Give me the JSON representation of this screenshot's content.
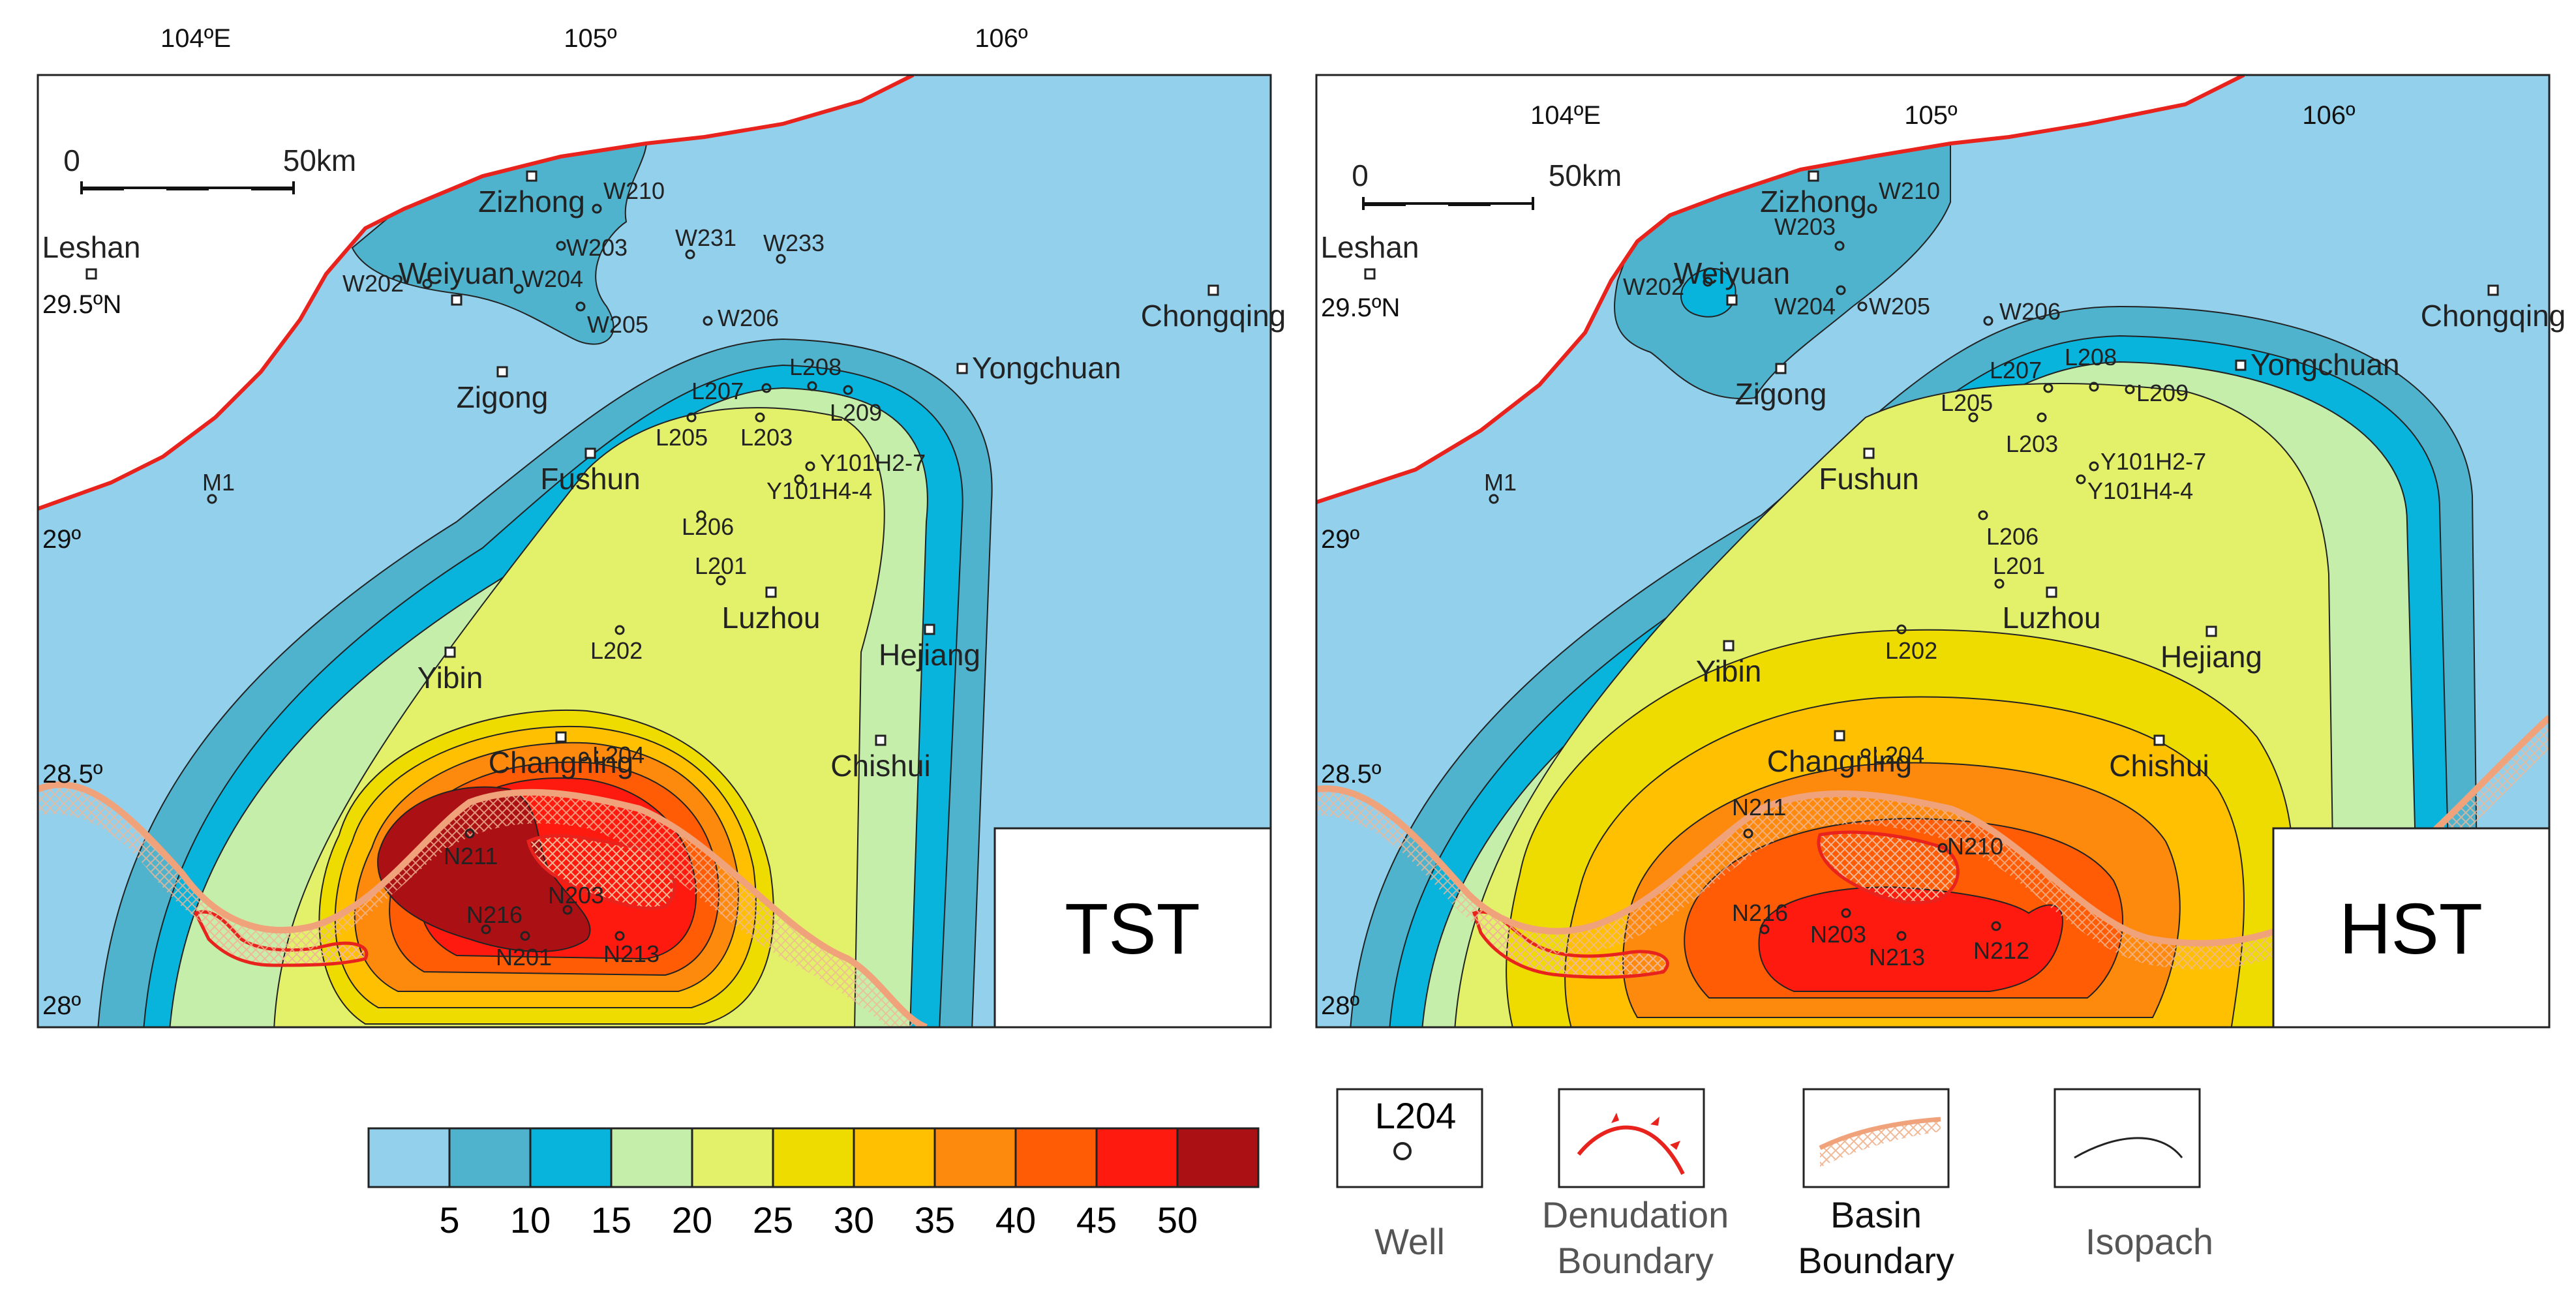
{
  "maps": [
    {
      "title": "TST",
      "lon_labels": [
        "104ºE",
        "105º",
        "106º"
      ],
      "lat_labels": [
        "29.5ºN",
        "29º",
        "28.5º",
        "28º"
      ],
      "scale": {
        "zero": "0",
        "end": "50km"
      },
      "cities": [
        "Zizhong",
        "Leshan",
        "Weiyuan",
        "Zigong",
        "Fushun",
        "Yibin",
        "Changning",
        "Luzhou",
        "Hejiang",
        "Chishui",
        "Yongchuan",
        "Chongqing"
      ],
      "wells": [
        "W210",
        "W203",
        "W231",
        "W233",
        "W202",
        "W204",
        "W205",
        "W206",
        "L208",
        "L207",
        "L209",
        "L205",
        "L203",
        "Y101H2-7",
        "Y101H4-4",
        "L206",
        "M1",
        "L201",
        "L202",
        "L204",
        "N211",
        "N203",
        "N216",
        "N201",
        "N213"
      ]
    },
    {
      "title": "HST",
      "lon_labels": [
        "104ºE",
        "105º",
        "106º"
      ],
      "lat_labels": [
        "29.5ºN",
        "29º",
        "28.5º",
        "28º"
      ],
      "scale": {
        "zero": "0",
        "end": "50km"
      },
      "cities": [
        "Zizhong",
        "Leshan",
        "Weiyuan",
        "Zigong",
        "Fushun",
        "Yibin",
        "Changning",
        "Luzhou",
        "Hejiang",
        "Chishui",
        "Yongchuan",
        "Chongqing"
      ],
      "wells": [
        "W210",
        "W203",
        "W202",
        "W204",
        "W205",
        "W206",
        "L207",
        "L208",
        "L209",
        "L205",
        "L203",
        "Y101H2-7",
        "Y101H4-4",
        "L206",
        "L201",
        "M1",
        "L202",
        "L204",
        "N211",
        "N210",
        "N216",
        "N203",
        "N213",
        "N212"
      ]
    }
  ],
  "colorbar": {
    "colors": [
      "#92d0ec",
      "#4fb3cd",
      "#09b4dc",
      "#c6eeab",
      "#e3f06a",
      "#eedc00",
      "#fec000",
      "#fe8a0d",
      "#ff5c05",
      "#ff1a10",
      "#ab1014"
    ],
    "labels": [
      "5",
      "10",
      "15",
      "20",
      "25",
      "30",
      "35",
      "40",
      "45",
      "50"
    ]
  },
  "legend": {
    "well_sample": "L204",
    "items": [
      {
        "label_lines": [
          "Well"
        ]
      },
      {
        "label_lines": [
          "Denudation",
          "Boundary"
        ]
      },
      {
        "label_lines": [
          "Basin",
          "Boundary"
        ]
      },
      {
        "label_lines": [
          "Isopach"
        ]
      }
    ]
  }
}
